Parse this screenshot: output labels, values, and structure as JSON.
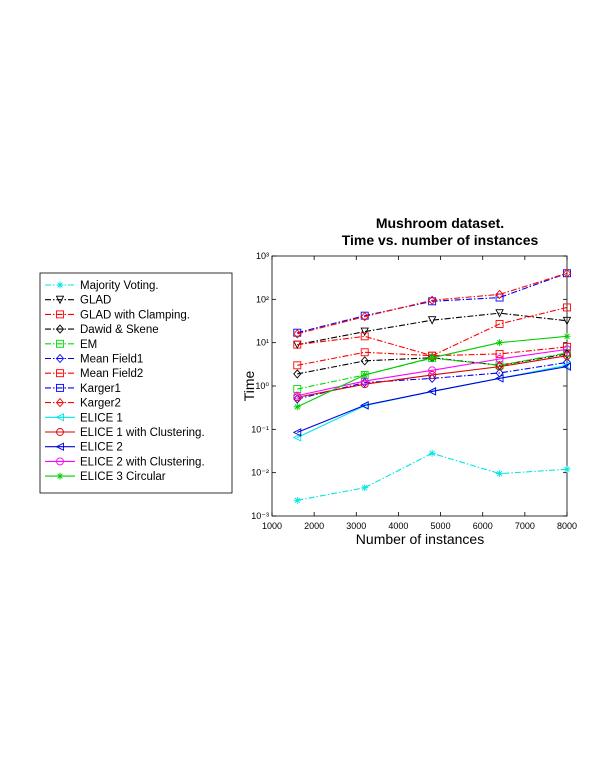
{
  "chart_data": {
    "type": "line",
    "title": [
      "Mushroom dataset.",
      "Time vs. number of instances"
    ],
    "xlabel": "Number of instances",
    "ylabel": "Time",
    "x": [
      1600,
      3200,
      4800,
      6400,
      8000
    ],
    "xlim": [
      1000,
      8000
    ],
    "xticks": [
      1000,
      2000,
      3000,
      4000,
      5000,
      6000,
      7000,
      8000
    ],
    "ylim": [
      0.001,
      1000
    ],
    "log_y": true,
    "yticks": [
      {
        "value": 0.001,
        "label": "10⁻³"
      },
      {
        "value": 0.01,
        "label": "10⁻²"
      },
      {
        "value": 0.1,
        "label": "10⁻¹"
      },
      {
        "value": 1,
        "label": "10⁰"
      },
      {
        "value": 10,
        "label": "10¹"
      },
      {
        "value": 100,
        "label": "10²"
      },
      {
        "value": 1000,
        "label": "10³"
      }
    ],
    "legend": "outside-left",
    "series": [
      {
        "name": "Majority Voting.",
        "color": "#00e5e5",
        "marker": "asterisk",
        "dash": "dashdot",
        "values": [
          0.0023,
          0.0045,
          0.028,
          0.0095,
          0.012
        ]
      },
      {
        "name": "GLAD",
        "color": "#000000",
        "marker": "triangle-down",
        "dash": "dashdot",
        "values": [
          9,
          18,
          33,
          48,
          32
        ]
      },
      {
        "name": "GLAD with Clamping.",
        "color": "#ff0000",
        "marker": "square",
        "dash": "dashdot",
        "values": [
          3,
          6,
          5,
          5.5,
          8
        ]
      },
      {
        "name": "Dawid & Skene",
        "color": "#000000",
        "marker": "diamond",
        "dash": "dashdot",
        "values": [
          1.9,
          3.8,
          4.5,
          3,
          5.5
        ]
      },
      {
        "name": "EM",
        "color": "#00dd00",
        "marker": "square",
        "dash": "dashdot",
        "values": [
          0.85,
          1.8,
          4.4,
          3,
          5.8
        ]
      },
      {
        "name": "Mean Field1",
        "color": "#0000ff",
        "marker": "diamond",
        "dash": "dashdot",
        "values": [
          0.5,
          1.2,
          1.5,
          2,
          3.5
        ]
      },
      {
        "name": "Mean Field2",
        "color": "#ff0000",
        "marker": "square",
        "dash": "dashdot",
        "values": [
          9,
          14,
          5,
          27,
          65
        ]
      },
      {
        "name": "Karger1",
        "color": "#0000ff",
        "marker": "square",
        "dash": "dashdot",
        "values": [
          17,
          42,
          90,
          110,
          400
        ]
      },
      {
        "name": "Karger2",
        "color": "#ff0000",
        "marker": "diamond",
        "dash": "dashdot",
        "values": [
          16,
          40,
          95,
          130,
          400
        ]
      },
      {
        "name": "ELICE 1",
        "color": "#00e5e5",
        "marker": "triangle-left",
        "dash": "solid",
        "values": [
          0.065,
          0.35,
          0.75,
          1.5,
          3
        ]
      },
      {
        "name": "ELICE 1 with Clustering.",
        "color": "#dd0000",
        "marker": "circle",
        "dash": "solid",
        "values": [
          0.55,
          1.1,
          1.8,
          2.8,
          5
        ]
      },
      {
        "name": "ELICE 2",
        "color": "#0000dd",
        "marker": "triangle-left",
        "dash": "solid",
        "values": [
          0.085,
          0.36,
          0.75,
          1.5,
          2.8
        ]
      },
      {
        "name": "ELICE 2 with Clustering.",
        "color": "#ff00ff",
        "marker": "circle",
        "dash": "solid",
        "values": [
          0.6,
          1.3,
          2.3,
          4.2,
          7
        ]
      },
      {
        "name": "ELICE 3 Circular",
        "color": "#00cc00",
        "marker": "star",
        "dash": "solid",
        "values": [
          0.33,
          1.8,
          4.5,
          10,
          14
        ]
      }
    ]
  }
}
